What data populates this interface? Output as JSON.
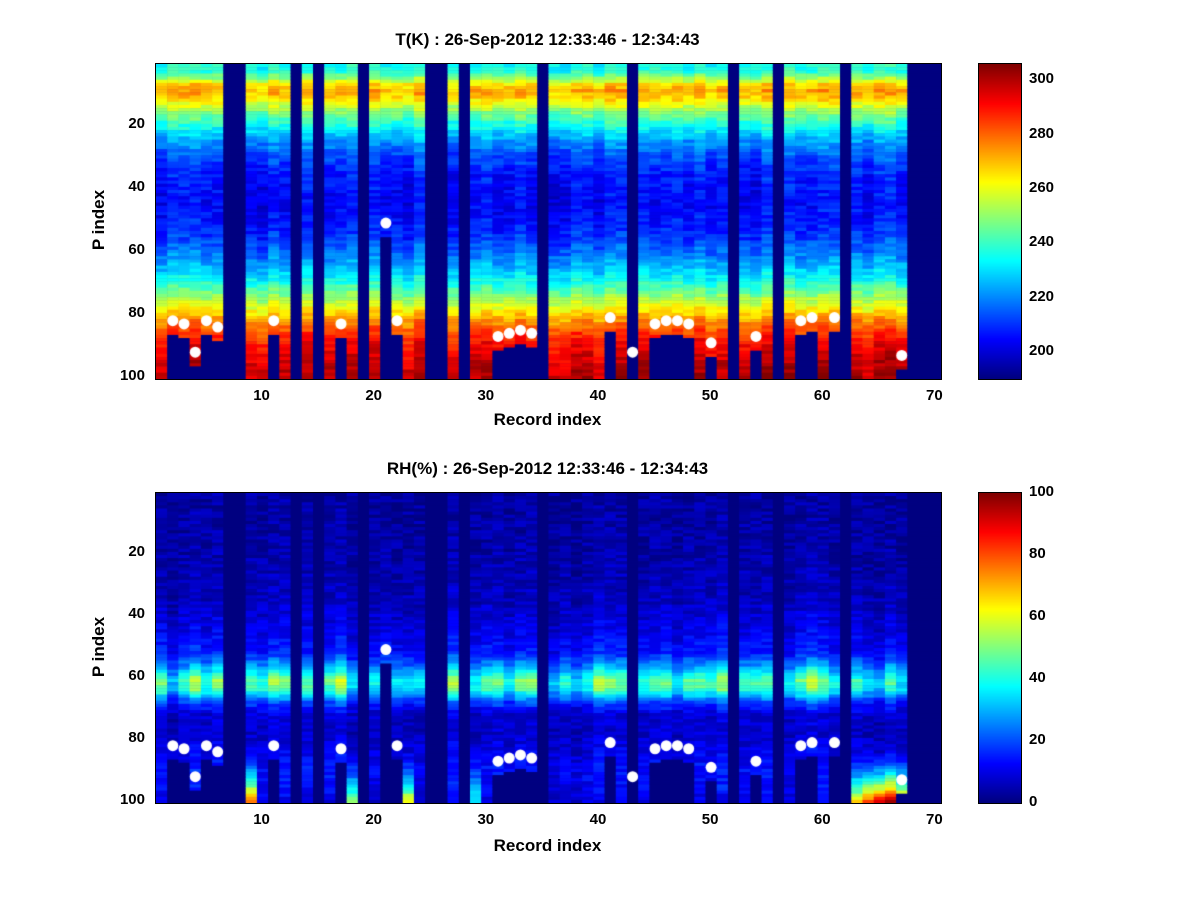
{
  "figure": {
    "background": "#ffffff",
    "marker_color": "#ffffff",
    "missing_data_color": "#00008b"
  },
  "chart_data": [
    {
      "type": "heatmap",
      "title": "T(K) : 26-Sep-2012 12:33:46 - 12:34:43",
      "xlabel": "Record index",
      "ylabel": "P index",
      "n_records": 70,
      "n_levels": 100,
      "x_ticks": [
        10,
        20,
        30,
        40,
        50,
        60,
        70
      ],
      "y_ticks": [
        20,
        40,
        60,
        80,
        100
      ],
      "y_axis_direction": "reversed",
      "colormap": "jet",
      "vmin": 190,
      "vmax": 306,
      "colorbar_ticks": [
        200,
        220,
        240,
        260,
        280,
        300
      ],
      "profile": [
        [
          1,
          236
        ],
        [
          3,
          238
        ],
        [
          5,
          250
        ],
        [
          7,
          266
        ],
        [
          9,
          272
        ],
        [
          11,
          268
        ],
        [
          13,
          260
        ],
        [
          16,
          248
        ],
        [
          20,
          236
        ],
        [
          25,
          222
        ],
        [
          30,
          213
        ],
        [
          36,
          207
        ],
        [
          44,
          204
        ],
        [
          50,
          206
        ],
        [
          56,
          211
        ],
        [
          62,
          220
        ],
        [
          68,
          232
        ],
        [
          73,
          246
        ],
        [
          78,
          262
        ],
        [
          82,
          275
        ],
        [
          86,
          285
        ],
        [
          90,
          292
        ],
        [
          95,
          297
        ],
        [
          100,
          300
        ]
      ],
      "cell_noise": 5,
      "column_noise": 4,
      "band_amp": 0,
      "missing_records": [
        7,
        8,
        13,
        15,
        19,
        25,
        26,
        28,
        35,
        43,
        52,
        56,
        62,
        68,
        69,
        70
      ],
      "markers": [
        [
          2,
          82
        ],
        [
          3,
          83
        ],
        [
          4,
          92
        ],
        [
          5,
          82
        ],
        [
          6,
          84
        ],
        [
          11,
          82
        ],
        [
          17,
          83
        ],
        [
          21,
          51
        ],
        [
          22,
          82
        ],
        [
          31,
          87
        ],
        [
          32,
          86
        ],
        [
          33,
          85
        ],
        [
          34,
          86
        ],
        [
          41,
          81
        ],
        [
          43,
          92
        ],
        [
          45,
          83
        ],
        [
          46,
          82
        ],
        [
          47,
          82
        ],
        [
          48,
          83
        ],
        [
          50,
          89
        ],
        [
          54,
          87
        ],
        [
          58,
          82
        ],
        [
          59,
          81
        ],
        [
          61,
          81
        ],
        [
          67,
          93
        ]
      ],
      "bottom_hot": []
    },
    {
      "type": "heatmap",
      "title": "RH(%) : 26-Sep-2012 12:33:46 - 12:34:43",
      "xlabel": "Record index",
      "ylabel": "P index",
      "n_records": 70,
      "n_levels": 100,
      "x_ticks": [
        10,
        20,
        30,
        40,
        50,
        60,
        70
      ],
      "y_ticks": [
        20,
        40,
        60,
        80,
        100
      ],
      "y_axis_direction": "reversed",
      "colormap": "jet",
      "vmin": 0,
      "vmax": 100,
      "colorbar_ticks": [
        0,
        20,
        40,
        60,
        80,
        100
      ],
      "profile": [
        [
          1,
          3
        ],
        [
          20,
          4
        ],
        [
          35,
          6
        ],
        [
          45,
          10
        ],
        [
          52,
          14
        ],
        [
          57,
          28
        ],
        [
          61,
          44
        ],
        [
          64,
          40
        ],
        [
          68,
          18
        ],
        [
          72,
          8
        ],
        [
          78,
          7
        ],
        [
          84,
          10
        ],
        [
          90,
          13
        ],
        [
          95,
          12
        ],
        [
          100,
          9
        ]
      ],
      "cell_noise": 4,
      "column_noise": 0,
      "band_amp": 0.35,
      "missing_records": [
        7,
        8,
        13,
        15,
        19,
        25,
        26,
        28,
        35,
        43,
        52,
        56,
        62,
        68,
        69,
        70
      ],
      "markers": [
        [
          2,
          82
        ],
        [
          3,
          83
        ],
        [
          4,
          92
        ],
        [
          5,
          82
        ],
        [
          6,
          84
        ],
        [
          11,
          82
        ],
        [
          17,
          83
        ],
        [
          21,
          51
        ],
        [
          22,
          82
        ],
        [
          31,
          87
        ],
        [
          32,
          86
        ],
        [
          33,
          85
        ],
        [
          34,
          86
        ],
        [
          41,
          81
        ],
        [
          43,
          92
        ],
        [
          45,
          83
        ],
        [
          46,
          82
        ],
        [
          47,
          82
        ],
        [
          48,
          83
        ],
        [
          50,
          89
        ],
        [
          54,
          87
        ],
        [
          58,
          82
        ],
        [
          59,
          81
        ],
        [
          61,
          81
        ],
        [
          67,
          93
        ]
      ],
      "bottom_hot": [
        [
          9,
          70
        ],
        [
          18,
          45
        ],
        [
          23,
          55
        ],
        [
          29,
          30
        ],
        [
          63,
          55
        ],
        [
          64,
          75
        ],
        [
          65,
          85
        ],
        [
          66,
          90
        ],
        [
          67,
          65
        ]
      ]
    }
  ]
}
